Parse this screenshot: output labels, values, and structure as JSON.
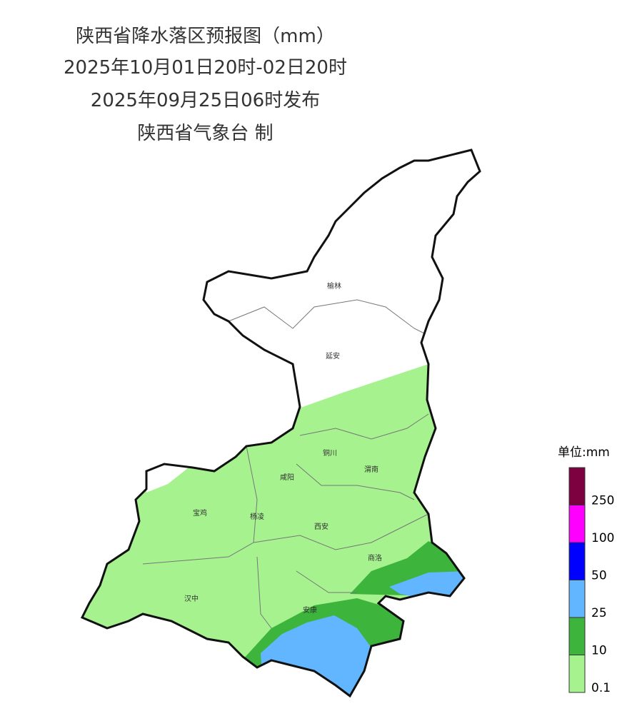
{
  "header": {
    "lines": [
      "陕西省降水落区预报图（mm）",
      "2025年10月01日20时-02日20时",
      "2025年09月25日06时发布",
      "陕西省气象台 制"
    ]
  },
  "cities": [
    "榆林",
    "延安",
    "铜川",
    "咸阳",
    "渭南",
    "宝鸡",
    "杨凌",
    "西安",
    "商洛",
    "汉中",
    "安康"
  ],
  "legend": {
    "title": "单位:mm",
    "labels": [
      "0.1",
      "10",
      "25",
      "50",
      "100",
      "250"
    ],
    "colors": [
      "#a6f28f",
      "#3db53d",
      "#62b6ff",
      "#0000fe",
      "#fe00fe",
      "#7d0040"
    ]
  }
}
